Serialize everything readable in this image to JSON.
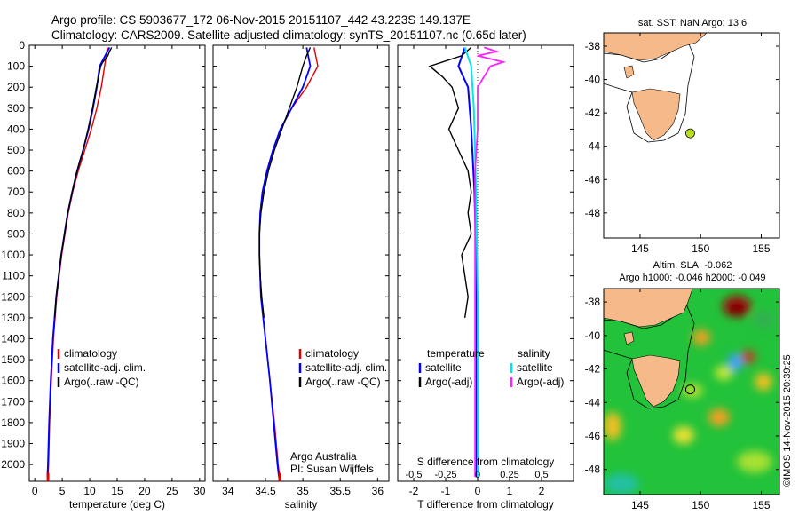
{
  "header": {
    "line1": "Argo profile: CS 5903677_172 06-Nov-2015 20151107_442 43.223S 149.137E",
    "line2": "Climatology: CARS2009. Satellite-adjusted climatology: synTS_20151107.nc (0.65d later)"
  },
  "watermark": "©IMOS 14-Nov-2015 20:39:25",
  "colors": {
    "climatology": "#e00000",
    "satellite": "#0000ff",
    "argo": "#000000",
    "sal_satellite": "#00e5ee",
    "sal_argo": "#ff22ff",
    "land": "#f5b98a",
    "argo_marker": "#b8e020"
  },
  "chart_data": [
    {
      "type": "line",
      "id": "temperature",
      "xlabel": "temperature (deg C)",
      "xlim": [
        -1,
        31
      ],
      "xticks": [
        0,
        5,
        10,
        15,
        20,
        25,
        30
      ],
      "ylim": [
        2080,
        0
      ],
      "yticks": [
        0,
        100,
        200,
        300,
        400,
        500,
        600,
        700,
        800,
        900,
        1000,
        1100,
        1200,
        1300,
        1400,
        1500,
        1600,
        1700,
        1800,
        1900,
        2000
      ],
      "legend": [
        "climatology",
        "satellite-adj. clim.",
        "Argo(..raw -QC)"
      ],
      "series": [
        {
          "name": "climatology",
          "depth": [
            10,
            50,
            100,
            200,
            300,
            400,
            500,
            600,
            700,
            800,
            900,
            1000,
            1200,
            1400,
            1600,
            1800,
            2000,
            2060
          ],
          "values": [
            13.2,
            13.0,
            12.7,
            12.1,
            11.3,
            10.3,
            9.1,
            7.9,
            6.9,
            6.1,
            5.5,
            4.9,
            4.0,
            3.4,
            3.0,
            2.7,
            2.5,
            2.4
          ]
        },
        {
          "name": "satellite-adj. clim.",
          "depth": [
            10,
            50,
            100,
            200,
            300,
            400,
            500,
            600,
            700,
            800,
            900,
            1000,
            1200,
            1400,
            1600,
            1800,
            2000,
            2060
          ],
          "values": [
            13.6,
            12.8,
            11.8,
            11.3,
            10.6,
            9.8,
            8.8,
            7.7,
            6.8,
            6.0,
            5.4,
            4.8,
            3.9,
            3.3,
            2.9,
            2.6,
            2.4,
            2.3
          ]
        },
        {
          "name": "Argo(..raw -QC)",
          "depth": [
            10,
            30,
            50,
            80,
            100,
            150,
            200,
            300,
            400,
            500,
            600,
            700,
            800,
            900,
            1000,
            1200,
            1300
          ],
          "values": [
            14.0,
            13.6,
            13.3,
            12.4,
            12.0,
            11.6,
            11.2,
            10.5,
            9.7,
            8.8,
            7.7,
            6.8,
            6.0,
            5.4,
            4.8,
            3.9,
            3.6
          ]
        }
      ]
    },
    {
      "type": "line",
      "id": "salinity",
      "xlabel": "salinity",
      "xlim": [
        33.8,
        36.15
      ],
      "xticks": [
        34,
        34.5,
        35,
        35.5,
        36
      ],
      "ylim": [
        2080,
        0
      ],
      "legend": [
        "climatology",
        "satellite-adj. clim.",
        "Argo(..raw -QC)"
      ],
      "annotation": [
        "Argo Australia",
        "PI: Susan Wijffels"
      ],
      "series": [
        {
          "name": "climatology",
          "depth": [
            10,
            100,
            200,
            300,
            400,
            500,
            600,
            700,
            800,
            900,
            1000,
            1200,
            1400,
            1600,
            1800,
            2000,
            2060
          ],
          "values": [
            35.15,
            35.2,
            35.05,
            34.85,
            34.7,
            34.6,
            34.52,
            34.46,
            34.43,
            34.42,
            34.42,
            34.44,
            34.5,
            34.56,
            34.62,
            34.67,
            34.69
          ]
        },
        {
          "name": "satellite-adj. clim.",
          "depth": [
            10,
            100,
            200,
            300,
            400,
            500,
            600,
            700,
            800,
            900,
            1000,
            1200,
            1400,
            1600,
            1800,
            2000,
            2060
          ],
          "values": [
            35.05,
            35.1,
            35.0,
            34.85,
            34.7,
            34.6,
            34.52,
            34.46,
            34.43,
            34.42,
            34.42,
            34.44,
            34.5,
            34.56,
            34.61,
            34.66,
            34.68
          ]
        },
        {
          "name": "Argo(..raw -QC)",
          "depth": [
            10,
            50,
            100,
            200,
            300,
            400,
            500,
            600,
            700,
            800,
            900,
            1000,
            1100,
            1200,
            1300
          ],
          "values": [
            35.1,
            35.05,
            35.0,
            34.92,
            34.82,
            34.72,
            34.62,
            34.54,
            34.48,
            34.44,
            34.42,
            34.42,
            34.43,
            34.45,
            34.48
          ]
        }
      ]
    },
    {
      "type": "line",
      "id": "difference",
      "xlabel": "T difference from climatology",
      "xlabel_top": "S difference from climatology",
      "xlim": [
        -2.5,
        3
      ],
      "xticks": [
        -2,
        -1,
        0,
        1,
        2
      ],
      "xticks_salinity": [
        -0.5,
        -0.25,
        0,
        0.25,
        0.5
      ],
      "ylim": [
        2080,
        0
      ],
      "legend_headers": [
        "temperature",
        "salinity"
      ],
      "legend": [
        "satellite",
        "Argo(-adj)",
        "satellite",
        "Argo(-adj)"
      ],
      "series": [
        {
          "name": "temperature satellite",
          "depth": [
            10,
            100,
            200,
            400,
            700,
            1000,
            1400,
            2000,
            2060
          ],
          "values": [
            -0.4,
            -0.6,
            -0.3,
            -0.2,
            -0.1,
            -0.05,
            -0.05,
            -0.05,
            -0.05
          ]
        },
        {
          "name": "temperature Argo(-adj)",
          "depth": [
            10,
            50,
            100,
            150,
            200,
            300,
            400,
            500,
            600,
            700,
            800,
            900,
            1000,
            1100,
            1200,
            1300
          ],
          "values": [
            -0.2,
            -0.5,
            -1.5,
            -1.1,
            -0.8,
            -0.6,
            -0.9,
            -0.6,
            -0.3,
            -0.2,
            -0.3,
            -0.2,
            -0.5,
            -0.4,
            -0.3,
            -0.4
          ]
        },
        {
          "name": "salinity satellite",
          "depth": [
            10,
            100,
            200,
            300,
            500,
            800,
            1200,
            1600,
            2060
          ],
          "values": [
            -0.1,
            -0.05,
            -0.04,
            -0.03,
            -0.02,
            -0.01,
            0.0,
            0.0,
            0.0
          ]
        },
        {
          "name": "salinity Argo(-adj)",
          "depth": [
            10,
            30,
            50,
            80,
            100,
            200,
            400,
            600,
            800,
            1000,
            1400,
            2060
          ],
          "values": [
            0.05,
            0.15,
            0.0,
            0.2,
            0.1,
            0.0,
            0.0,
            -0.02,
            -0.02,
            -0.02,
            -0.02,
            -0.02
          ]
        }
      ]
    },
    {
      "type": "map",
      "id": "sst-map",
      "title": "sat. SST: NaN  Argo: 13.6",
      "xlim": [
        142,
        156.5
      ],
      "ylim": [
        -49.5,
        -37.2
      ],
      "xticks": [
        145,
        150,
        155
      ],
      "yticks": [
        -38,
        -40,
        -42,
        -44,
        -46,
        -48
      ],
      "argo_position": [
        149.137,
        -43.223
      ]
    },
    {
      "type": "heatmap",
      "id": "sla-map",
      "title1": "Altim. SLA: -0.062",
      "title2": "Argo h1000: -0.046 h2000: -0.049",
      "xlim": [
        142,
        156.5
      ],
      "ylim": [
        -49.5,
        -37.2
      ],
      "xticks": [
        145,
        150,
        155
      ],
      "yticks": [
        -38,
        -40,
        -42,
        -44,
        -46,
        -48
      ],
      "argo_position": [
        149.137,
        -43.223
      ]
    }
  ]
}
